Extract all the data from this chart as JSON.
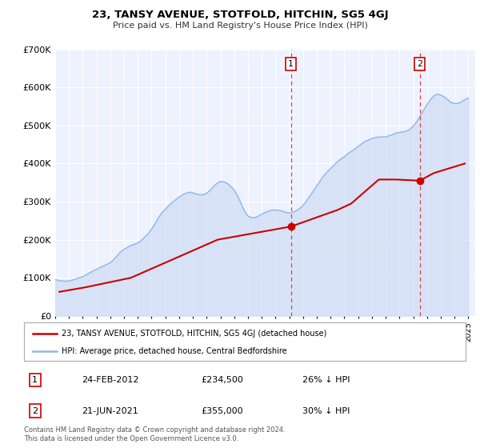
{
  "title": "23, TANSY AVENUE, STOTFOLD, HITCHIN, SG5 4GJ",
  "subtitle": "Price paid vs. HM Land Registry's House Price Index (HPI)",
  "ylim": [
    0,
    700000
  ],
  "xlim_start": 1995.0,
  "xlim_end": 2025.5,
  "yticks": [
    0,
    100000,
    200000,
    300000,
    400000,
    500000,
    600000,
    700000
  ],
  "ytick_labels": [
    "£0",
    "£100K",
    "£200K",
    "£300K",
    "£400K",
    "£500K",
    "£600K",
    "£700K"
  ],
  "fig_bg_color": "#ffffff",
  "plot_bg_color": "#eef2ff",
  "grid_color": "#ffffff",
  "sale_color": "#cc0000",
  "hpi_color": "#90b8e8",
  "hpi_fill_color": "#c8d8f0",
  "sale_label": "23, TANSY AVENUE, STOTFOLD, HITCHIN, SG5 4GJ (detached house)",
  "hpi_label": "HPI: Average price, detached house, Central Bedfordshire",
  "marker1_x": 2012.12,
  "marker1_y": 234500,
  "marker1_label": "1",
  "marker1_date": "24-FEB-2012",
  "marker1_price": "£234,500",
  "marker1_hpi": "26% ↓ HPI",
  "marker2_x": 2021.47,
  "marker2_y": 355000,
  "marker2_label": "2",
  "marker2_date": "21-JUN-2021",
  "marker2_price": "£355,000",
  "marker2_hpi": "30% ↓ HPI",
  "footer1": "Contains HM Land Registry data © Crown copyright and database right 2024.",
  "footer2": "This data is licensed under the Open Government Licence v3.0.",
  "hpi_data_x": [
    1995.0,
    1995.25,
    1995.5,
    1995.75,
    1996.0,
    1996.25,
    1996.5,
    1996.75,
    1997.0,
    1997.25,
    1997.5,
    1997.75,
    1998.0,
    1998.25,
    1998.5,
    1998.75,
    1999.0,
    1999.25,
    1999.5,
    1999.75,
    2000.0,
    2000.25,
    2000.5,
    2000.75,
    2001.0,
    2001.25,
    2001.5,
    2001.75,
    2002.0,
    2002.25,
    2002.5,
    2002.75,
    2003.0,
    2003.25,
    2003.5,
    2003.75,
    2004.0,
    2004.25,
    2004.5,
    2004.75,
    2005.0,
    2005.25,
    2005.5,
    2005.75,
    2006.0,
    2006.25,
    2006.5,
    2006.75,
    2007.0,
    2007.25,
    2007.5,
    2007.75,
    2008.0,
    2008.25,
    2008.5,
    2008.75,
    2009.0,
    2009.25,
    2009.5,
    2009.75,
    2010.0,
    2010.25,
    2010.5,
    2010.75,
    2011.0,
    2011.25,
    2011.5,
    2011.75,
    2012.0,
    2012.25,
    2012.5,
    2012.75,
    2013.0,
    2013.25,
    2013.5,
    2013.75,
    2014.0,
    2014.25,
    2014.5,
    2014.75,
    2015.0,
    2015.25,
    2015.5,
    2015.75,
    2016.0,
    2016.25,
    2016.5,
    2016.75,
    2017.0,
    2017.25,
    2017.5,
    2017.75,
    2018.0,
    2018.25,
    2018.5,
    2018.75,
    2019.0,
    2019.25,
    2019.5,
    2019.75,
    2020.0,
    2020.25,
    2020.5,
    2020.75,
    2021.0,
    2021.25,
    2021.5,
    2021.75,
    2022.0,
    2022.25,
    2022.5,
    2022.75,
    2023.0,
    2023.25,
    2023.5,
    2023.75,
    2024.0,
    2024.25,
    2024.5,
    2024.75,
    2025.0
  ],
  "hpi_data_y": [
    95000,
    93000,
    92000,
    91000,
    92000,
    94000,
    97000,
    100000,
    103000,
    108000,
    113000,
    118000,
    122000,
    127000,
    131000,
    135000,
    140000,
    148000,
    158000,
    168000,
    175000,
    180000,
    185000,
    188000,
    192000,
    198000,
    207000,
    216000,
    228000,
    242000,
    258000,
    271000,
    280000,
    290000,
    298000,
    305000,
    312000,
    318000,
    322000,
    325000,
    323000,
    320000,
    318000,
    318000,
    322000,
    330000,
    340000,
    348000,
    353000,
    352000,
    348000,
    340000,
    330000,
    315000,
    295000,
    275000,
    262000,
    258000,
    258000,
    262000,
    267000,
    272000,
    275000,
    278000,
    278000,
    277000,
    275000,
    272000,
    270000,
    272000,
    276000,
    282000,
    290000,
    302000,
    315000,
    328000,
    342000,
    355000,
    368000,
    378000,
    387000,
    396000,
    405000,
    412000,
    418000,
    426000,
    432000,
    438000,
    445000,
    452000,
    458000,
    462000,
    466000,
    468000,
    470000,
    470000,
    470000,
    473000,
    476000,
    480000,
    482000,
    483000,
    485000,
    490000,
    498000,
    510000,
    525000,
    540000,
    555000,
    568000,
    578000,
    582000,
    580000,
    575000,
    568000,
    560000,
    558000,
    558000,
    562000,
    568000,
    572000
  ],
  "sale_data_x": [
    1995.3,
    1997.2,
    2000.5,
    2006.8,
    2012.12,
    2015.5,
    2016.5,
    2018.5,
    2019.75,
    2021.47,
    2022.5,
    2024.75
  ],
  "sale_data_y": [
    63000,
    75000,
    100000,
    200000,
    234500,
    278000,
    295000,
    358000,
    358000,
    355000,
    375000,
    400000
  ]
}
